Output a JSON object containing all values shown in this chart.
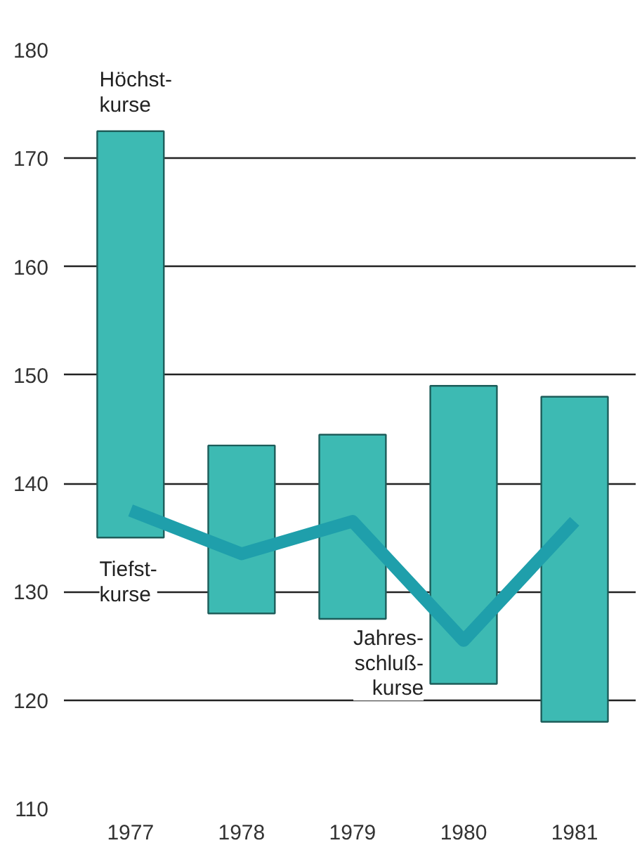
{
  "chart_data": {
    "type": "bar",
    "categories": [
      "1977",
      "1978",
      "1979",
      "1980",
      "1981"
    ],
    "base": [
      135,
      128,
      127.5,
      121.5,
      118
    ],
    "values": [
      37.5,
      15.5,
      17,
      27.5,
      30
    ],
    "color": "#3dbab3",
    "series": [
      {
        "type": "line",
        "color": "#1f9fab",
        "values": [
          137.5,
          133.5,
          136.5,
          125.5,
          136.5
        ]
      }
    ],
    "ylim": [
      110,
      180
    ],
    "yticks": [
      110,
      120,
      130,
      140,
      150,
      160,
      170,
      180
    ],
    "grid": "y",
    "annotations": [
      {
        "text": "Höchst-\nkurse",
        "x": "1977",
        "y": 172.5
      },
      {
        "text": "Tiefst-\nkurse",
        "x": "1977",
        "y": 135
      },
      {
        "text": "Jahres-\nschluß-\nkurse",
        "x": "1980",
        "y": 125.5
      }
    ]
  }
}
